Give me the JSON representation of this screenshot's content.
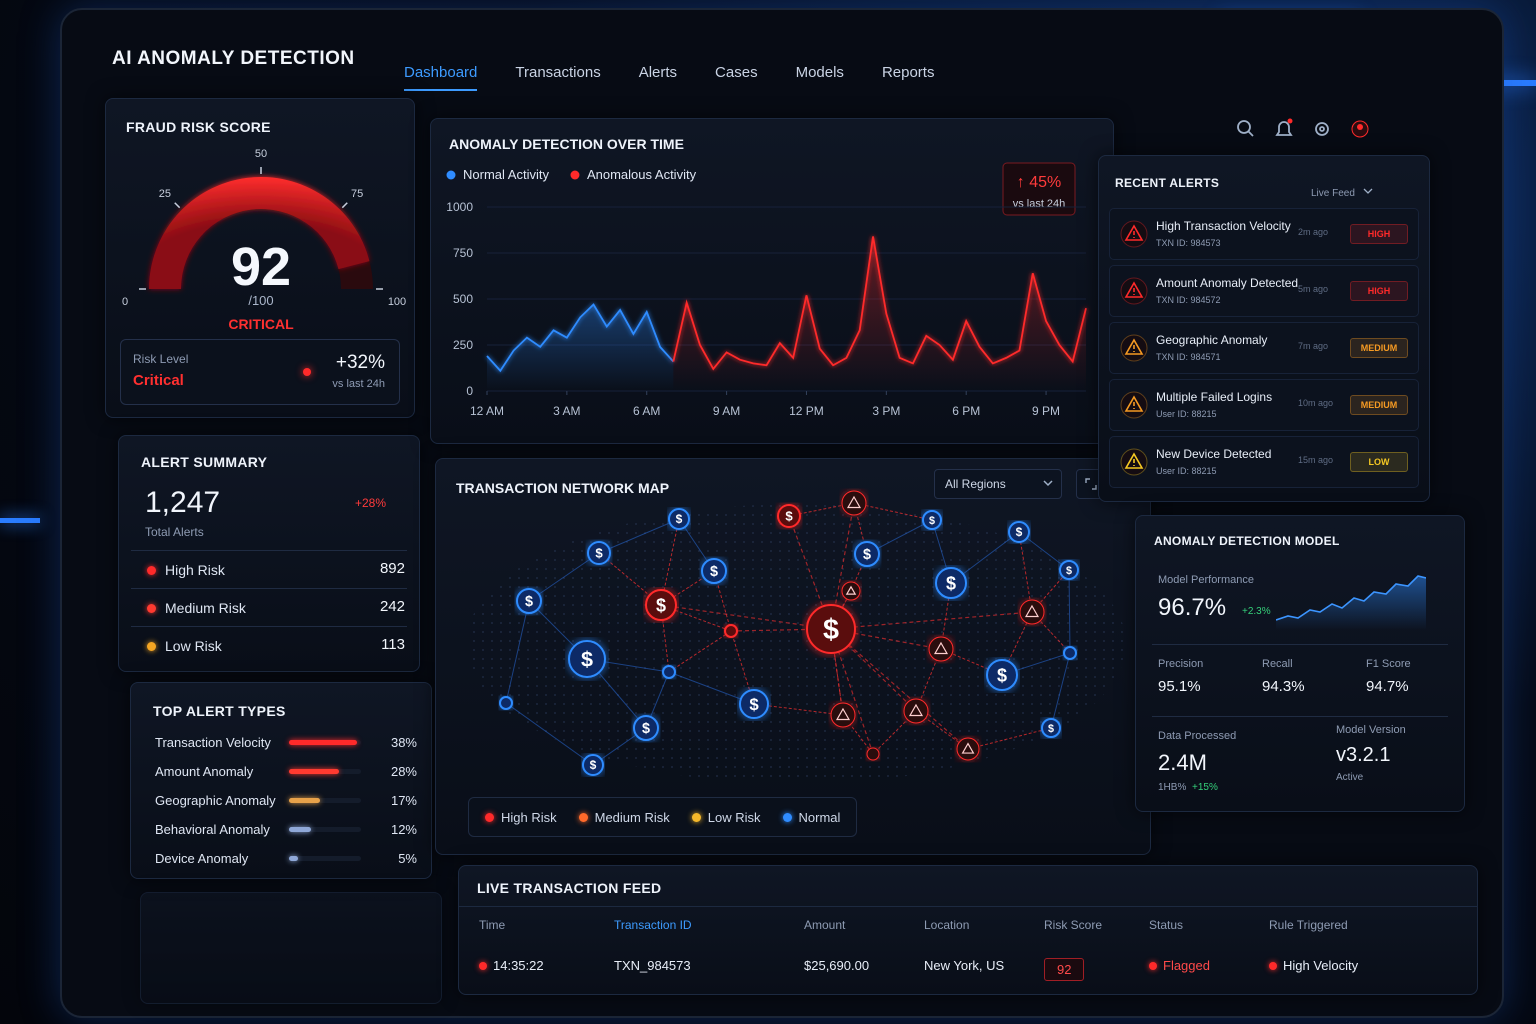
{
  "header": {
    "title": "AI ANOMALY DETECTION",
    "nav": [
      "Dashboard",
      "Transactions",
      "Alerts",
      "Cases",
      "Models",
      "Reports"
    ],
    "active_nav": 0
  },
  "fraud_risk": {
    "title": "FRAUD RISK SCORE",
    "score": 92,
    "max_label": "/100",
    "status": "CRITICAL",
    "gauge_ticks": [
      0,
      25,
      50,
      75,
      100
    ],
    "risk_level_label": "Risk Level",
    "risk_level": "Critical",
    "change": "+32%",
    "change_note": "vs last 24h"
  },
  "alert_summary": {
    "title": "ALERT SUMMARY",
    "total": "1,247",
    "total_label": "Total Alerts",
    "change": "+28%",
    "rows": [
      {
        "label": "High Risk",
        "value": 892,
        "color": "#ff2a2a"
      },
      {
        "label": "Medium Risk",
        "value": 242,
        "color": "#ff3a30"
      },
      {
        "label": "Low Risk",
        "value": 113,
        "color": "#f5a623"
      }
    ]
  },
  "top_alert_types": {
    "title": "TOP ALERT TYPES",
    "xlim": [
      0,
      40
    ],
    "items": [
      {
        "label": "Transaction Velocity",
        "value": 38,
        "value_label": "38%",
        "color": "#ff2a2a"
      },
      {
        "label": "Amount Anomaly",
        "value": 28,
        "value_label": "28%",
        "color": "#ff3a30"
      },
      {
        "label": "Geographic Anomaly",
        "value": 17,
        "value_label": "17%",
        "color": "#e8a24a"
      },
      {
        "label": "Behavioral Anomaly",
        "value": 12,
        "value_label": "12%",
        "color": "#8fa8d8"
      },
      {
        "label": "Device Anomaly",
        "value": 5,
        "value_label": "5%",
        "color": "#8fa8d8"
      }
    ]
  },
  "anomaly_chart": {
    "type": "line",
    "title": "ANOMALY DETECTION OVER TIME",
    "badge": "↑ 45%",
    "badge_note": "vs last 24h",
    "x": [
      0,
      0.5,
      1,
      1.5,
      2,
      2.5,
      3,
      3.5,
      4,
      4.5,
      5,
      5.5,
      6,
      6.5,
      7,
      7.5,
      8,
      8.5,
      9,
      9.5,
      10,
      10.5,
      11,
      11.5,
      12,
      12.5,
      13,
      13.5,
      14,
      14.5,
      15,
      15.5,
      16,
      16.5,
      17,
      17.5,
      18,
      18.5,
      19,
      19.5,
      20,
      20.5,
      21,
      21.5,
      22,
      22.5
    ],
    "xlim": [
      0,
      22.5
    ],
    "xticks": [
      {
        "value": 0,
        "label": "12 AM"
      },
      {
        "value": 3,
        "label": "3 AM"
      },
      {
        "value": 6,
        "label": "6 AM"
      },
      {
        "value": 9,
        "label": "9 AM"
      },
      {
        "value": 12,
        "label": "12 PM"
      },
      {
        "value": 15,
        "label": "3 PM"
      },
      {
        "value": 18,
        "label": "6 PM"
      },
      {
        "value": 21,
        "label": "9 PM"
      }
    ],
    "ylim": [
      0,
      1000
    ],
    "yticks": [
      0,
      250,
      500,
      750,
      1000
    ],
    "grid": true,
    "series": [
      {
        "name": "Normal Activity",
        "color": "#2f8cff",
        "values": [
          190,
          110,
          220,
          290,
          240,
          330,
          290,
          400,
          470,
          350,
          440,
          310,
          430,
          240,
          160,
          null,
          null,
          null,
          null,
          null,
          null,
          null,
          null,
          null,
          null,
          null,
          null,
          null,
          null,
          null,
          null,
          null,
          null,
          null,
          null,
          null,
          null,
          null,
          null,
          null,
          null,
          null,
          null,
          null,
          null,
          null
        ]
      },
      {
        "name": "Anomalous Activity",
        "color": "#ff2a2a",
        "values": [
          null,
          null,
          null,
          null,
          null,
          null,
          null,
          null,
          null,
          null,
          null,
          null,
          null,
          null,
          160,
          480,
          250,
          120,
          210,
          170,
          150,
          140,
          260,
          180,
          520,
          230,
          140,
          180,
          330,
          840,
          420,
          180,
          150,
          300,
          250,
          170,
          380,
          240,
          150,
          180,
          220,
          640,
          380,
          250,
          160,
          450
        ]
      }
    ]
  },
  "recent_alerts": {
    "title": "RECENT ALERTS",
    "feed": "Live Feed",
    "items": [
      {
        "title": "High Transaction Velocity",
        "id": "TXN ID: 984573",
        "time": "2m ago",
        "severity": "HIGH",
        "color": "#ff2a2a"
      },
      {
        "title": "Amount Anomaly Detected",
        "id": "TXN ID: 984572",
        "time": "5m ago",
        "severity": "HIGH",
        "color": "#ff2a2a"
      },
      {
        "title": "Geographic Anomaly",
        "id": "TXN ID: 984571",
        "time": "7m ago",
        "severity": "MEDIUM",
        "color": "#f59a23"
      },
      {
        "title": "Multiple Failed Logins",
        "id": "User ID: 88215",
        "time": "10m ago",
        "severity": "MEDIUM",
        "color": "#f59a23"
      },
      {
        "title": "New Device Detected",
        "id": "User ID: 88215",
        "time": "15m ago",
        "severity": "LOW",
        "color": "#f5c823"
      }
    ]
  },
  "network_map": {
    "title": "TRANSACTION NETWORK MAP",
    "region": "All Regions",
    "node_icon": "$",
    "legend": [
      {
        "name": "High Risk",
        "color": "#ff2a2a"
      },
      {
        "name": "Medium Risk",
        "color": "#ff6a2a"
      },
      {
        "name": "Low Risk",
        "color": "#f5b82a"
      },
      {
        "name": "Normal",
        "color": "#2f8cff"
      }
    ]
  },
  "model": {
    "title": "ANOMALY DETECTION MODEL",
    "performance_label": "Model Performance",
    "performance": "96.7%",
    "performance_change": "+2.3%",
    "metrics": [
      {
        "label": "Precision",
        "value": "95.1%"
      },
      {
        "label": "Recall",
        "value": "94.3%"
      },
      {
        "label": "F1 Score",
        "value": "94.7%"
      }
    ],
    "data_processed_label": "Data Processed",
    "data_processed": "2.4M",
    "data_processed_unit": "1HB%",
    "data_processed_change": "+15%",
    "version_label": "Model Version",
    "version": "v3.2.1",
    "version_status": "Active"
  },
  "live_feed": {
    "title": "LIVE TRANSACTION FEED",
    "columns": [
      "Time",
      "Transaction ID",
      "Amount",
      "Location",
      "Risk Score",
      "Status",
      "Rule Triggered"
    ],
    "rows": [
      [
        "14:35:22",
        "TXN_984573",
        "$25,690.00",
        "New York, US",
        "92",
        "Flagged",
        "High Velocity"
      ]
    ]
  }
}
